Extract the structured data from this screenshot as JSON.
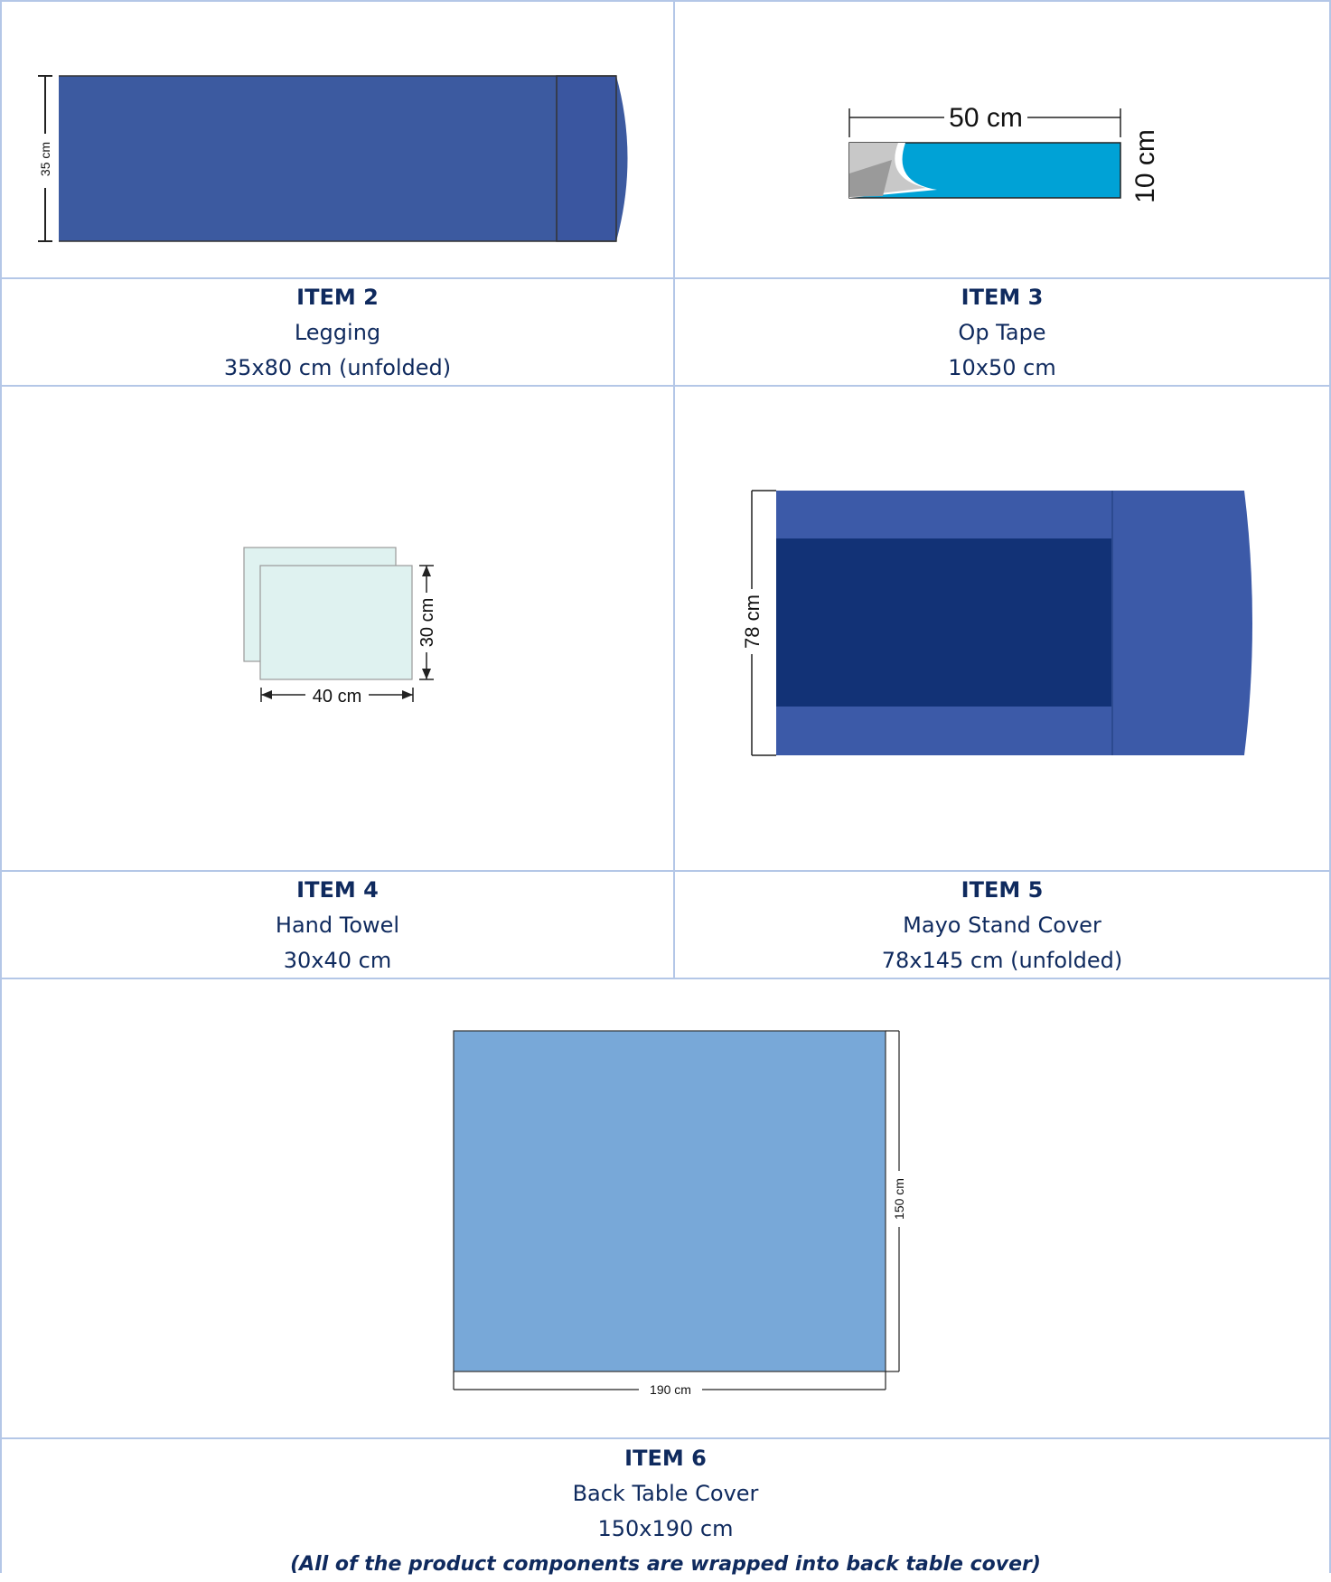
{
  "items": [
    {
      "title": "ITEM 2",
      "name": "Legging",
      "size": "35x80 cm (unfolded)",
      "dimension_labels": [
        "35 cm"
      ],
      "color": "#3c5aa0"
    },
    {
      "title": "ITEM 3",
      "name": "Op Tape",
      "size": "10x50 cm",
      "dimension_labels": [
        "50 cm",
        "10 cm"
      ],
      "color": "#00a2d6"
    },
    {
      "title": "ITEM 4",
      "name": "Hand Towel",
      "size": "30x40 cm",
      "dimension_labels": [
        "30 cm",
        "40 cm"
      ],
      "color": "#dff2f0"
    },
    {
      "title": "ITEM 5",
      "name": "Mayo Stand Cover",
      "size": "78x145 cm (unfolded)",
      "dimension_labels": [
        "78 cm"
      ],
      "color": "#3c5aa8"
    },
    {
      "title": "ITEM 6",
      "name": "Back Table Cover",
      "size": "150x190 cm",
      "note": "(All of the product components are wrapped into back table cover)",
      "dimension_labels": [
        "150 cm",
        "190 cm"
      ],
      "color": "#78a8d8"
    }
  ]
}
